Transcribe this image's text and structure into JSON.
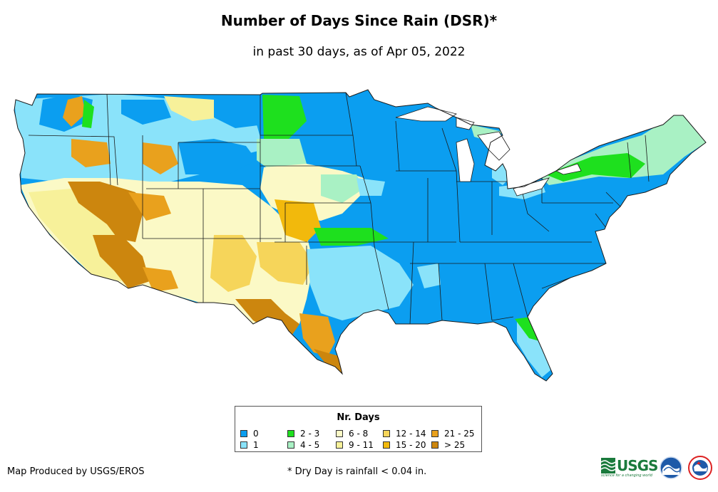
{
  "title": "Number of Days Since Rain (DSR)*",
  "subtitle": "in past 30 days, as of Apr 05, 2022",
  "legend": {
    "title": "Nr. Days",
    "items": [
      {
        "label": "0",
        "color": "#0b9ef0"
      },
      {
        "label": "1",
        "color": "#8ae3fa"
      },
      {
        "label": "2 - 3",
        "color": "#1ee01e"
      },
      {
        "label": "4 - 5",
        "color": "#a9f1c4"
      },
      {
        "label": "6 - 8",
        "color": "#fbf9c6"
      },
      {
        "label": "9 - 11",
        "color": "#f7f19a"
      },
      {
        "label": "12 - 14",
        "color": "#f6d55a"
      },
      {
        "label": "15 - 20",
        "color": "#f2b90c"
      },
      {
        "label": "21 - 25",
        "color": "#e9a11d"
      },
      {
        "label": "> 25",
        "color": "#cc860e"
      }
    ]
  },
  "footer": {
    "credit": "Map Produced by USGS/EROS",
    "note": "* Dry Day is rainfall < 0.04 in."
  },
  "logos": {
    "usgs_text": "USGS",
    "usgs_tagline": "science for a changing world"
  }
}
